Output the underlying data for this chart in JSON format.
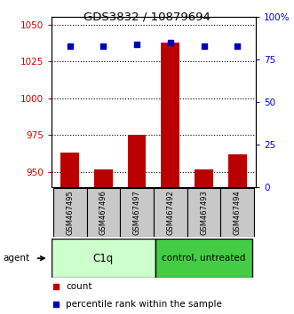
{
  "title": "GDS3832 / 10879694",
  "samples": [
    "GSM467495",
    "GSM467496",
    "GSM467497",
    "GSM467492",
    "GSM467493",
    "GSM467494"
  ],
  "counts": [
    963,
    952,
    975,
    1038,
    952,
    962
  ],
  "percentiles": [
    83,
    83,
    84,
    85,
    83,
    83
  ],
  "bar_color": "#bb0000",
  "dot_color": "#0000bb",
  "ylim_left": [
    940,
    1055
  ],
  "ylim_right": [
    0,
    100
  ],
  "yticks_left": [
    950,
    975,
    1000,
    1025,
    1050
  ],
  "yticks_right": [
    0,
    25,
    50,
    75,
    100
  ],
  "ytick_labels_right": [
    "0",
    "25",
    "50",
    "75",
    "100%"
  ],
  "left_axis_color": "#cc0000",
  "right_axis_color": "#0000cc",
  "group1_color": "#ccffcc",
  "group2_color": "#44cc44",
  "bar_width": 0.55
}
